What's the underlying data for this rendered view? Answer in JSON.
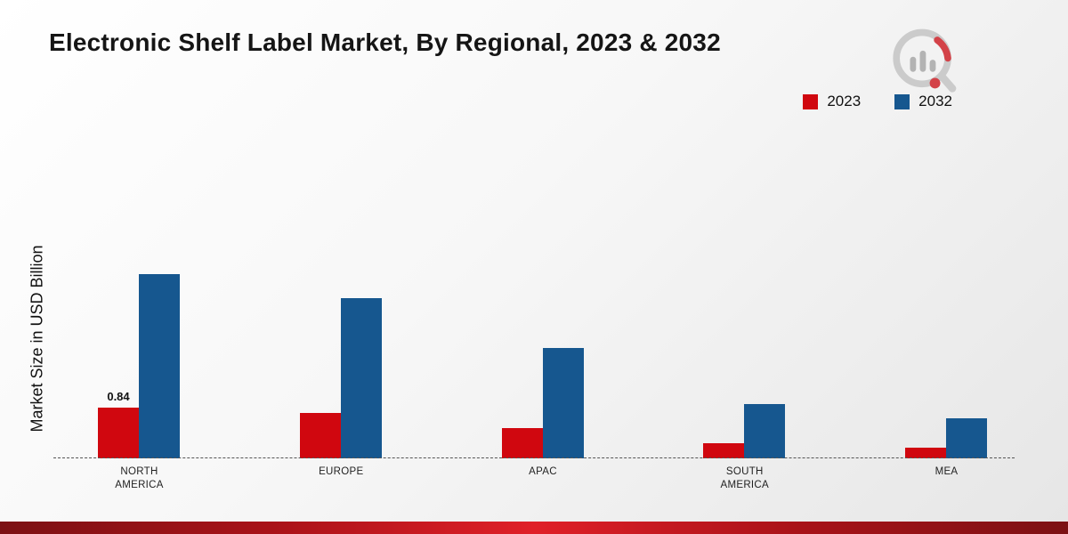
{
  "title": "Electronic Shelf Label Market, By Regional, 2023 & 2032",
  "ylabel": "Market Size in USD Billion",
  "colors": {
    "series_2023": "#d0070f",
    "series_2032": "#16578f",
    "baseline": "#555555",
    "footer_stripe": "#a81218"
  },
  "legend": {
    "position": "top-right",
    "items": [
      {
        "label": "2023",
        "color": "#d0070f"
      },
      {
        "label": "2032",
        "color": "#16578f"
      }
    ]
  },
  "branding": {
    "logo": "market-research-future-logo"
  },
  "chart_data": {
    "type": "bar",
    "categories": [
      "NORTH AMERICA",
      "EUROPE",
      "APAC",
      "SOUTH AMERICA",
      "MEA"
    ],
    "series": [
      {
        "name": "2023",
        "color": "#d0070f",
        "values": [
          0.84,
          0.75,
          0.5,
          0.25,
          0.18
        ]
      },
      {
        "name": "2032",
        "color": "#16578f",
        "values": [
          3.05,
          2.65,
          1.82,
          0.9,
          0.66
        ]
      }
    ],
    "title": "Electronic Shelf Label Market, By Regional, 2023 & 2032",
    "xlabel": "",
    "ylabel": "Market Size in USD Billion",
    "ylim": [
      0,
      3.5
    ],
    "grid": false,
    "legend_position": "top-right",
    "data_labels": [
      {
        "series": "2023",
        "category": "NORTH AMERICA",
        "text": "0.84"
      }
    ]
  }
}
